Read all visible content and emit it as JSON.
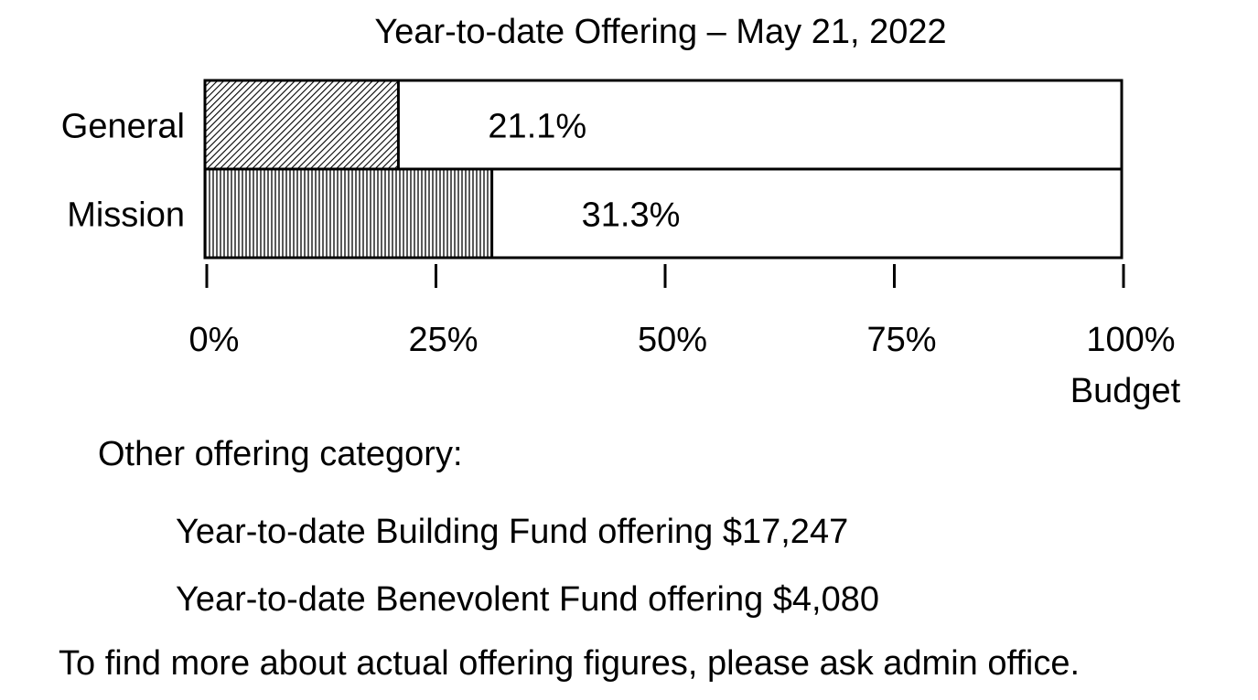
{
  "chart_data": {
    "type": "bar",
    "orientation": "horizontal",
    "title": "Year-to-date Offering – May 21, 2022",
    "categories": [
      "General",
      "Mission"
    ],
    "values": [
      21.1,
      31.3
    ],
    "value_labels": [
      "21.1%",
      "31.3%"
    ],
    "xlim": [
      0,
      100
    ],
    "x_ticks": [
      0,
      25,
      50,
      75,
      100
    ],
    "x_tick_labels": [
      "0%",
      "25%",
      "50%",
      "75%",
      "100%"
    ],
    "xlabel": "Budget",
    "ylabel": "",
    "grid": false,
    "patterns": [
      "diagonal-hatch",
      "vertical-hatch"
    ]
  },
  "notes": {
    "other_heading": "Other offering category:",
    "building_fund": "Year-to-date Building Fund offering $17,247",
    "benevolent_fund": "Year-to-date Benevolent Fund offering $4,080",
    "footer": "To find more about actual offering figures, please ask admin office."
  }
}
